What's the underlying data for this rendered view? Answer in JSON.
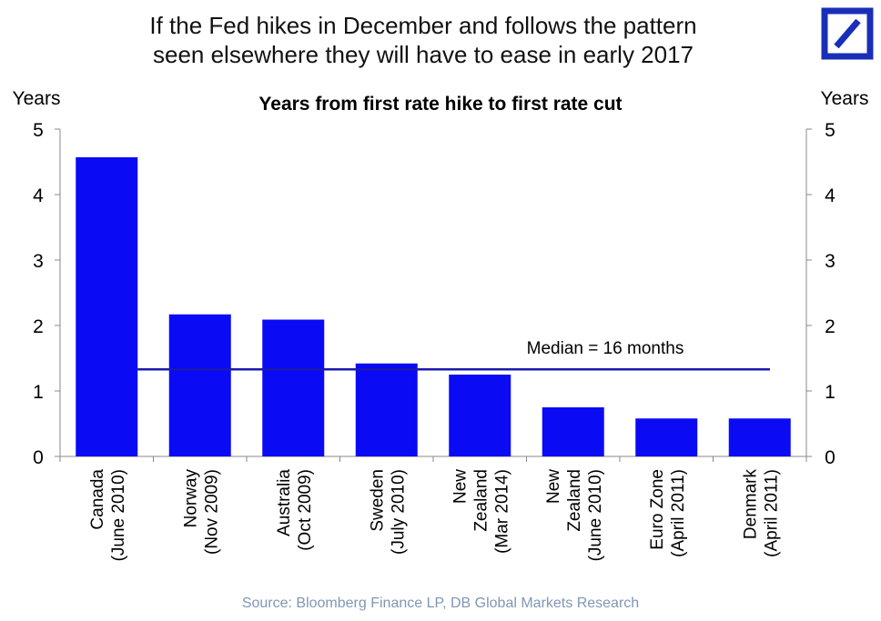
{
  "headline": {
    "line1": "If the Fed hikes in December and follows the pattern",
    "line2": "seen elsewhere they will have to ease in early 2017"
  },
  "logo": {
    "name": "deutsche-bank-logo",
    "color": "#1a2fb8"
  },
  "source": "Source: Bloomberg Finance LP, DB Global Markets Research",
  "chart_data": {
    "type": "bar",
    "title": "Years from first rate hike to first rate cut",
    "ylabel_left": "Years",
    "ylabel_right": "Years",
    "ylim": [
      0,
      5
    ],
    "yticks": [
      0,
      1,
      2,
      3,
      4,
      5
    ],
    "categories": [
      [
        "Canada",
        "(June 2010)"
      ],
      [
        "Norway",
        "(Nov 2009)"
      ],
      [
        "Australia",
        "(Oct 2009)"
      ],
      [
        "Sweden",
        "(July 2010)"
      ],
      [
        "New",
        "Zealand",
        "(Mar 2014)"
      ],
      [
        "New",
        "Zealand",
        "(June 2010)"
      ],
      [
        "Euro Zone",
        "(April 2011)"
      ],
      [
        "Denmark",
        "(April 2011)"
      ]
    ],
    "values": [
      4.57,
      2.17,
      2.09,
      1.42,
      1.25,
      0.75,
      0.58,
      0.58
    ],
    "median": {
      "value": 1.33,
      "label": "Median = 16 months"
    },
    "bar_color": "#0a0af5",
    "median_color": "#1a1ab0"
  }
}
